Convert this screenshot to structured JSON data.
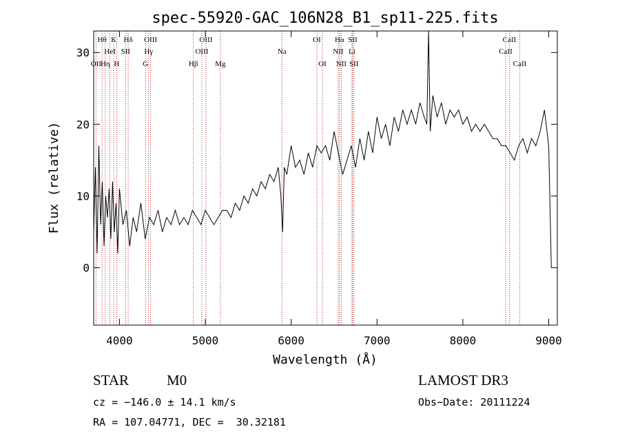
{
  "chart_data": {
    "type": "line",
    "title": "spec-55920-GAC_106N28_B1_sp11-225.fits",
    "xlabel": "Wavelength (Å)",
    "ylabel": "Flux (relative)",
    "xlim": [
      3700,
      9100
    ],
    "ylim": [
      -8,
      33
    ],
    "x_ticks": [
      4000,
      5000,
      6000,
      7000,
      8000,
      9000
    ],
    "y_ticks": [
      0,
      10,
      20,
      30
    ],
    "series": [
      {
        "name": "spectrum",
        "x": [
          3700,
          3720,
          3740,
          3760,
          3780,
          3800,
          3820,
          3840,
          3860,
          3880,
          3900,
          3920,
          3940,
          3960,
          3980,
          4000,
          4040,
          4080,
          4120,
          4160,
          4200,
          4250,
          4300,
          4350,
          4400,
          4450,
          4500,
          4550,
          4600,
          4650,
          4700,
          4750,
          4800,
          4850,
          4900,
          4950,
          5000,
          5050,
          5100,
          5150,
          5200,
          5250,
          5300,
          5350,
          5400,
          5450,
          5500,
          5550,
          5600,
          5650,
          5700,
          5750,
          5800,
          5850,
          5880,
          5900,
          5920,
          5950,
          6000,
          6050,
          6100,
          6150,
          6200,
          6250,
          6300,
          6350,
          6400,
          6450,
          6500,
          6550,
          6600,
          6650,
          6700,
          6750,
          6800,
          6850,
          6900,
          6950,
          7000,
          7050,
          7100,
          7150,
          7200,
          7250,
          7300,
          7350,
          7400,
          7450,
          7500,
          7550,
          7580,
          7600,
          7620,
          7650,
          7700,
          7750,
          7800,
          7850,
          7900,
          7950,
          8000,
          8050,
          8100,
          8150,
          8200,
          8250,
          8300,
          8350,
          8400,
          8450,
          8500,
          8550,
          8600,
          8650,
          8700,
          8750,
          8800,
          8850,
          8900,
          8950,
          9000,
          9030
        ],
        "y": [
          5,
          14,
          2,
          17,
          6,
          12,
          3,
          10,
          7,
          11,
          4,
          12,
          5,
          9,
          2,
          11,
          6,
          8,
          3,
          7,
          5,
          9,
          4,
          7,
          6,
          8,
          5,
          7,
          6,
          8,
          6,
          7,
          6,
          8,
          7,
          6,
          8,
          7,
          6,
          7,
          8,
          8,
          7,
          9,
          8,
          10,
          9,
          11,
          10,
          12,
          11,
          13,
          12,
          14,
          10,
          5,
          14,
          13,
          17,
          14,
          15,
          13,
          16,
          14,
          17,
          16,
          17,
          15,
          19,
          16,
          13,
          15,
          17,
          14,
          18,
          15,
          19,
          16,
          21,
          18,
          20,
          17,
          21,
          19,
          22,
          20,
          22,
          20,
          23,
          21,
          20,
          33,
          19,
          24,
          21,
          23,
          20,
          22,
          21,
          22,
          20,
          21,
          19,
          20,
          19,
          20,
          19,
          18,
          18,
          17,
          17,
          16,
          15,
          17,
          18,
          16,
          18,
          17,
          19,
          22,
          17,
          0
        ]
      }
    ],
    "lines_row1": [
      {
        "label": "Hθ",
        "x": 3798
      },
      {
        "label": "K",
        "x": 3934
      },
      {
        "label": "Hδ",
        "x": 4102
      },
      {
        "label": "OIII",
        "x": 4363
      },
      {
        "label": "OIII",
        "x": 5007
      },
      {
        "label": "OI",
        "x": 6300
      },
      {
        "label": "Hα",
        "x": 6563
      },
      {
        "label": "SII",
        "x": 6717
      },
      {
        "label": "CaII",
        "x": 8542
      }
    ],
    "lines_row2": [
      {
        "label": "HeI",
        "x": 3889
      },
      {
        "label": "SII",
        "x": 4072
      },
      {
        "label": "Hγ",
        "x": 4340
      },
      {
        "label": "OIII",
        "x": 4959
      },
      {
        "label": "Na",
        "x": 5893
      },
      {
        "label": "NII",
        "x": 6548
      },
      {
        "label": "Li",
        "x": 6708
      },
      {
        "label": "CaII",
        "x": 8498
      }
    ],
    "lines_row3": [
      {
        "label": "OII",
        "x": 3727
      },
      {
        "label": "Hη",
        "x": 3835
      },
      {
        "label": "H",
        "x": 3968
      },
      {
        "label": "G",
        "x": 4304
      },
      {
        "label": "Hβ",
        "x": 4861
      },
      {
        "label": "Mg",
        "x": 5175
      },
      {
        "label": "OI",
        "x": 6364
      },
      {
        "label": "NII",
        "x": 6584
      },
      {
        "label": "SII",
        "x": 6731
      },
      {
        "label": "CaII",
        "x": 8662
      }
    ]
  },
  "info": {
    "class": "STAR",
    "subclass": "M0",
    "survey": "LAMOST DR3",
    "cz": "cz = −146.0 ± 14.1 km/s",
    "obs_date": "Obs−Date: 20111224",
    "radec": "RA = 107.04771, DEC =  30.32181"
  }
}
